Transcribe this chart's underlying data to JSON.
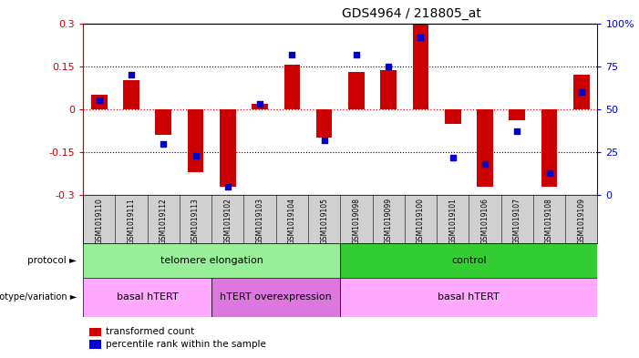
{
  "title": "GDS4964 / 218805_at",
  "samples": [
    "GSM1019110",
    "GSM1019111",
    "GSM1019112",
    "GSM1019113",
    "GSM1019102",
    "GSM1019103",
    "GSM1019104",
    "GSM1019105",
    "GSM1019098",
    "GSM1019099",
    "GSM1019100",
    "GSM1019101",
    "GSM1019106",
    "GSM1019107",
    "GSM1019108",
    "GSM1019109"
  ],
  "transformed_count": [
    0.05,
    0.1,
    -0.09,
    -0.22,
    -0.27,
    0.02,
    0.155,
    -0.1,
    0.13,
    0.135,
    0.3,
    -0.05,
    -0.27,
    -0.04,
    -0.27,
    0.12
  ],
  "percentile_rank": [
    55,
    70,
    30,
    23,
    5,
    53,
    82,
    32,
    82,
    75,
    92,
    22,
    18,
    37,
    13,
    60
  ],
  "ylim": [
    -0.3,
    0.3
  ],
  "yticks_left": [
    -0.3,
    -0.15,
    0.0,
    0.15,
    0.3
  ],
  "ytick_labels_left": [
    "-0.3",
    "-0.15",
    "0",
    "0.15",
    "0.3"
  ],
  "yticks_right": [
    0,
    25,
    50,
    75,
    100
  ],
  "ytick_labels_right": [
    "0",
    "25",
    "50",
    "75",
    "100%"
  ],
  "protocol_groups": [
    {
      "label": "telomere elongation",
      "start": 0,
      "end": 8,
      "color": "#99ee99"
    },
    {
      "label": "control",
      "start": 8,
      "end": 16,
      "color": "#33cc33"
    }
  ],
  "genotype_groups": [
    {
      "label": "basal hTERT",
      "start": 0,
      "end": 4,
      "color": "#ffaaff"
    },
    {
      "label": "hTERT overexpression",
      "start": 4,
      "end": 8,
      "color": "#dd77dd"
    },
    {
      "label": "basal hTERT",
      "start": 8,
      "end": 16,
      "color": "#ffaaff"
    }
  ],
  "bar_color": "#cc0000",
  "dot_color": "#0000cc",
  "background_color": "#ffffff",
  "title_color": "#000000",
  "left_axis_color": "#cc0000",
  "right_axis_color": "#0000cc",
  "plot_bg": "#ffffff",
  "xticklabel_bg": "#d0d0d0"
}
